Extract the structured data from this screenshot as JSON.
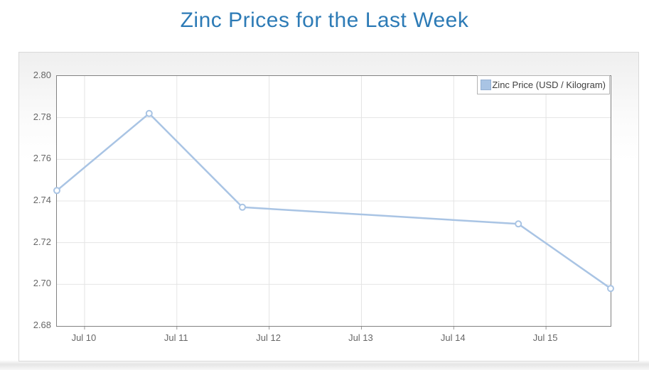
{
  "page": {
    "title": "Zinc Prices for the Last Week"
  },
  "legend": {
    "label": "Zinc Price (USD / Kilogram)"
  },
  "chart_data": {
    "type": "line",
    "title": "Zinc Prices for the Last Week",
    "xlabel": "",
    "ylabel": "",
    "ylim": [
      2.68,
      2.8
    ],
    "xlim_days": [
      9.7,
      15.7
    ],
    "grid": true,
    "legend_position": "top-right",
    "y_ticks": [
      {
        "label": "2.80",
        "value": 2.8
      },
      {
        "label": "2.78",
        "value": 2.78
      },
      {
        "label": "2.76",
        "value": 2.76
      },
      {
        "label": "2.74",
        "value": 2.74
      },
      {
        "label": "2.72",
        "value": 2.72
      },
      {
        "label": "2.70",
        "value": 2.7
      },
      {
        "label": "2.68",
        "value": 2.68
      }
    ],
    "x_ticks": [
      {
        "label": "Jul 10",
        "day": 10
      },
      {
        "label": "Jul 11",
        "day": 11
      },
      {
        "label": "Jul 12",
        "day": 12
      },
      {
        "label": "Jul 13",
        "day": 13
      },
      {
        "label": "Jul 14",
        "day": 14
      },
      {
        "label": "Jul 15",
        "day": 15
      }
    ],
    "series": [
      {
        "name": "Zinc Price (USD / Kilogram)",
        "points": [
          {
            "date": "Jul 9",
            "day": 9.7,
            "price": 2.745
          },
          {
            "date": "Jul 10",
            "day": 10.7,
            "price": 2.782
          },
          {
            "date": "Jul 11",
            "day": 11.71,
            "price": 2.737
          },
          {
            "date": "Jul 14",
            "day": 14.7,
            "price": 2.729
          },
          {
            "date": "Jul 15",
            "day": 15.7,
            "price": 2.698
          }
        ]
      }
    ],
    "colors": {
      "line": "#a9c4e4",
      "marker_fill": "#ffffff",
      "marker_stroke": "#a9c4e4",
      "grid": "#e4e4e4",
      "plot_border": "#818181",
      "tick": "#999999",
      "axis_text": "#666666",
      "title": "#2d7bb6",
      "legend_swatch": "#a9c4e4"
    }
  }
}
